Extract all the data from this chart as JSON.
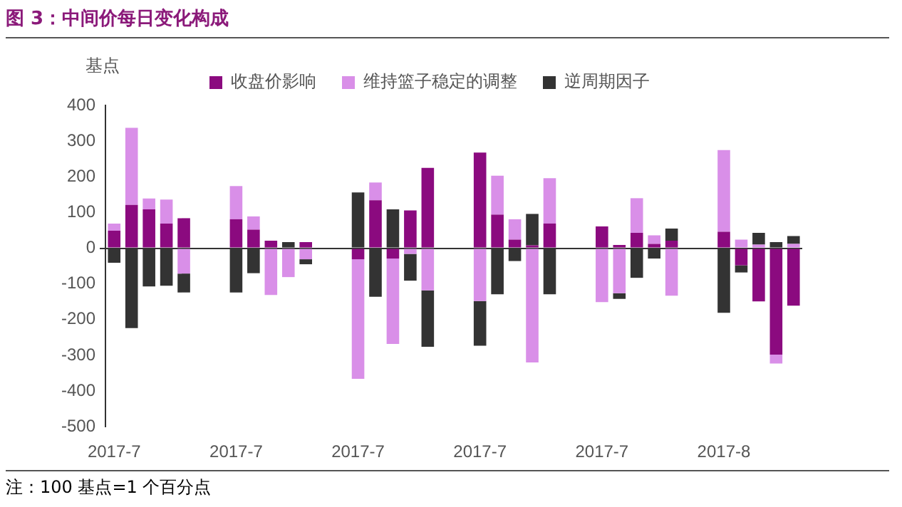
{
  "chart_data": {
    "type": "bar",
    "title": "图 3：中间价每日变化构成",
    "ylabel": "基点",
    "annotations": [
      "注：100 基点=1 个百分点"
    ],
    "categories": [
      "2017-7",
      null,
      null,
      null,
      null,
      null,
      null,
      "2017-7",
      null,
      null,
      null,
      null,
      null,
      null,
      "2017-7",
      null,
      null,
      null,
      null,
      null,
      null,
      "2017-7",
      null,
      null,
      null,
      null,
      null,
      null,
      "2017-7",
      null,
      null,
      null,
      null,
      null,
      null,
      "2017-8",
      null,
      null,
      null,
      null
    ],
    "stacked": true,
    "ylim": [
      -500,
      400
    ],
    "yticks": [
      -500,
      -400,
      -300,
      -200,
      -100,
      0,
      100,
      200,
      300,
      400
    ],
    "legend": "top",
    "series": [
      {
        "name": "收盘价影响",
        "color": "#8b0a7f",
        "values": [
          49,
          121,
          109,
          69,
          84,
          null,
          null,
          81,
          52,
          21,
          0,
          17,
          null,
          null,
          -31,
          134,
          -29,
          106,
          225,
          null,
          null,
          268,
          94,
          24,
          8,
          69,
          null,
          null,
          61,
          9,
          43,
          12,
          21,
          null,
          null,
          46,
          -48,
          -149,
          -298,
          -161
        ]
      },
      {
        "name": "维持篮子稳定的调整",
        "color": "#d98fe8",
        "values": [
          20,
          216,
          30,
          67,
          -71,
          null,
          null,
          93,
          37,
          -131,
          -81,
          -31,
          null,
          null,
          -335,
          50,
          -239,
          -16,
          -118,
          null,
          null,
          -148,
          109,
          57,
          -320,
          127,
          null,
          null,
          -151,
          -126,
          97,
          24,
          -133,
          null,
          null,
          229,
          24,
          10,
          -25,
          12
        ]
      },
      {
        "name": "逆周期因子",
        "color": "#333333",
        "values": [
          -41,
          -224,
          -107,
          -105,
          -53,
          null,
          null,
          -124,
          -70,
          0,
          17,
          -14,
          null,
          null,
          156,
          -136,
          109,
          -75,
          -158,
          null,
          null,
          -125,
          -129,
          -36,
          88,
          -129,
          null,
          null,
          0,
          -16,
          -83,
          -29,
          34,
          null,
          null,
          -181,
          -20,
          33,
          17,
          22
        ]
      }
    ]
  }
}
